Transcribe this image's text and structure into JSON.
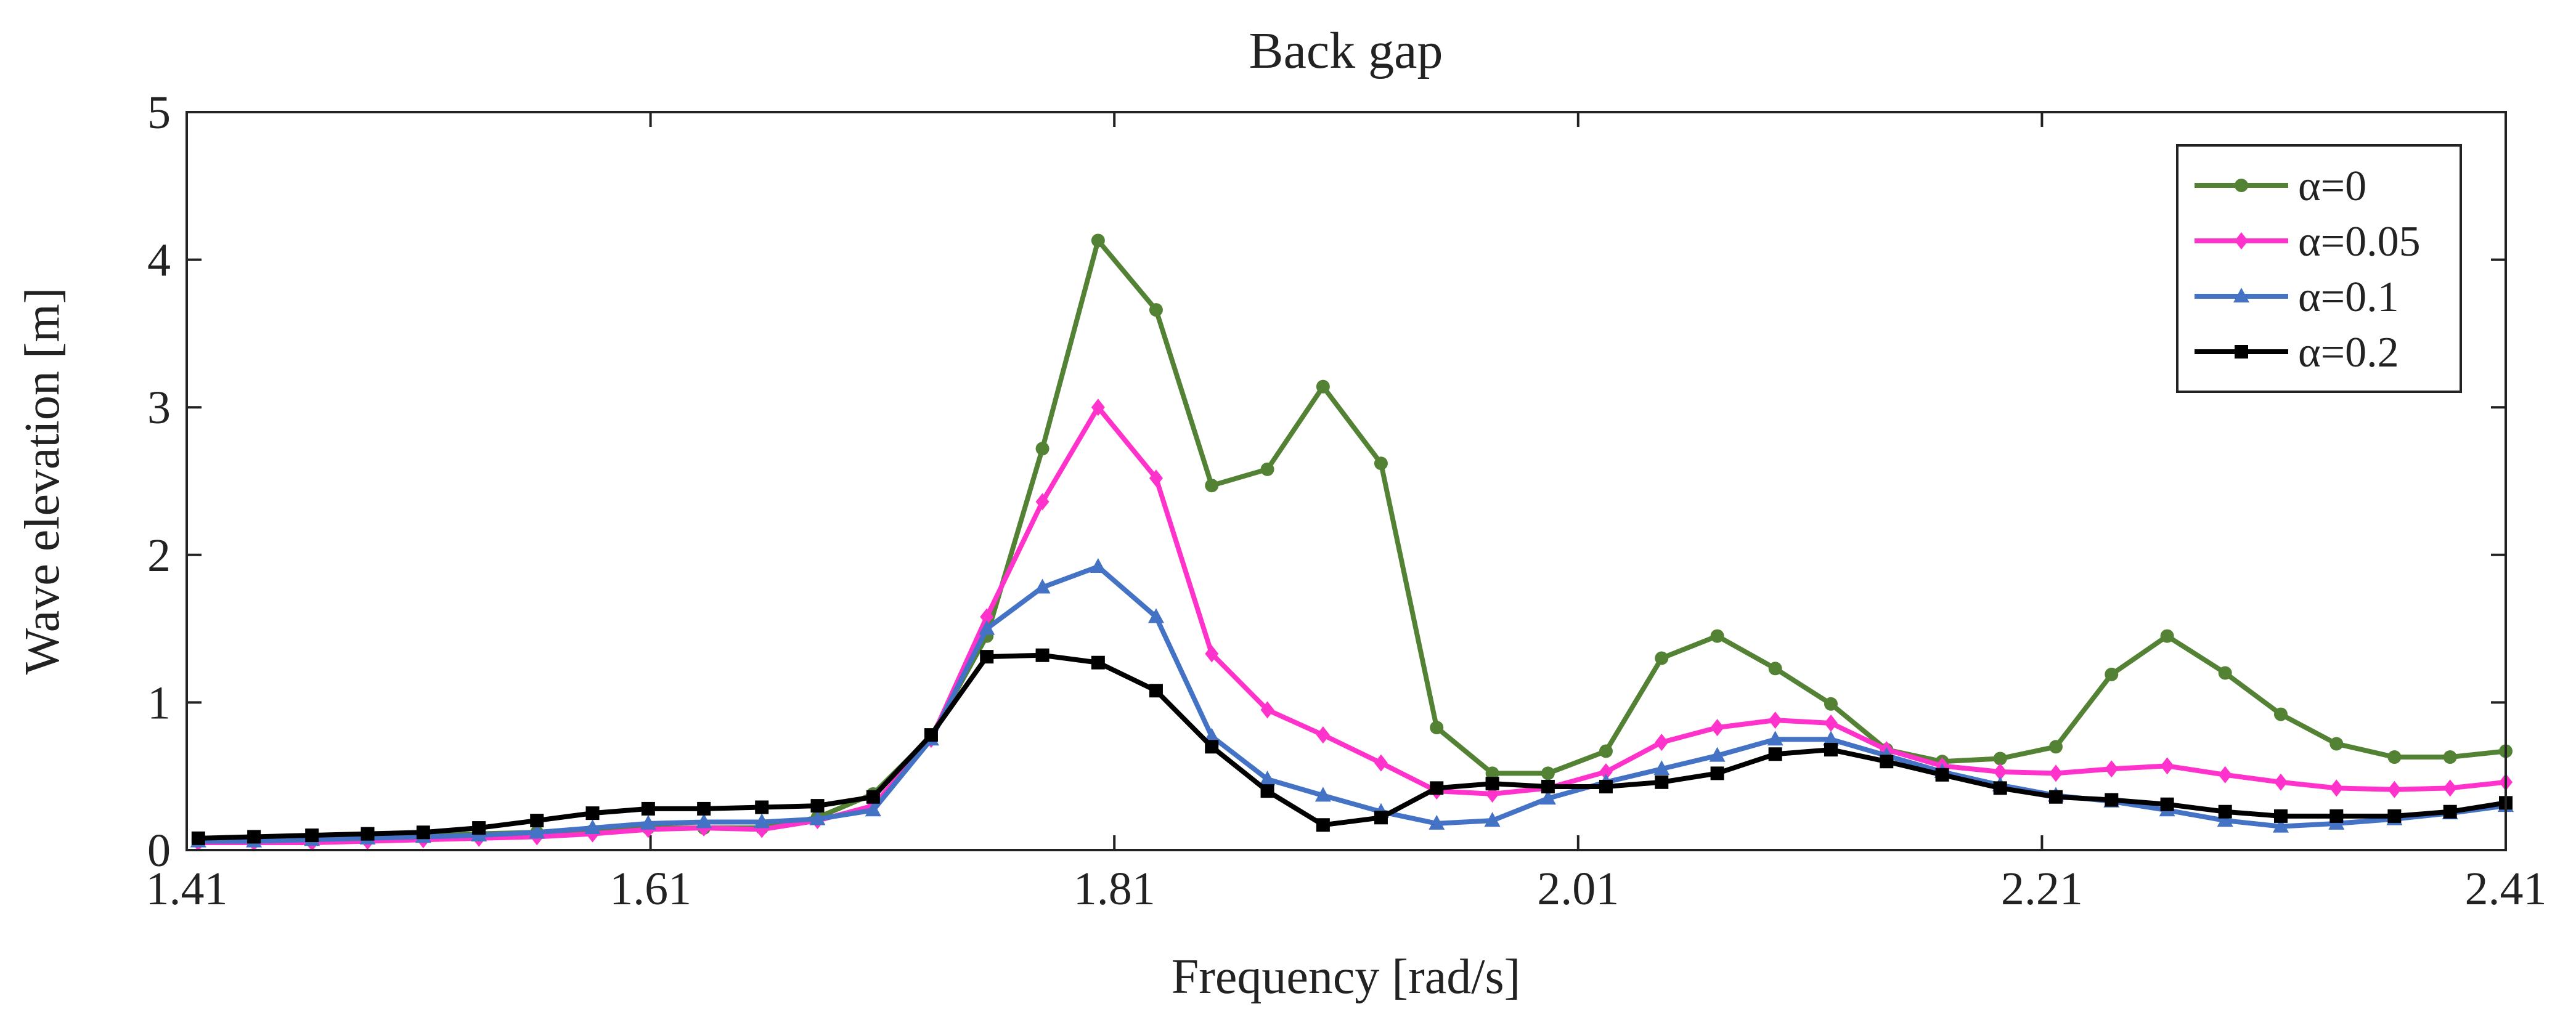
{
  "chart_data": {
    "type": "line",
    "title": "Back gap",
    "xlabel": "Frequency [rad/s]",
    "ylabel": "Wave elevation [m]",
    "xlim": [
      1.41,
      2.41
    ],
    "xticks": [
      1.41,
      1.61,
      1.81,
      2.01,
      2.21,
      2.41
    ],
    "ylim": [
      0,
      5
    ],
    "yticks": [
      0,
      1,
      2,
      3,
      4,
      5
    ],
    "legend": "upper right",
    "grid": false,
    "x": [
      1.415,
      1.439,
      1.464,
      1.488,
      1.512,
      1.536,
      1.561,
      1.585,
      1.609,
      1.633,
      1.658,
      1.682,
      1.706,
      1.731,
      1.755,
      1.779,
      1.803,
      1.828,
      1.852,
      1.876,
      1.9,
      1.925,
      1.949,
      1.973,
      1.997,
      2.022,
      2.046,
      2.07,
      2.095,
      2.119,
      2.143,
      2.167,
      2.192,
      2.216,
      2.24,
      2.264,
      2.289,
      2.313,
      2.337,
      2.362,
      2.386,
      2.41
    ],
    "series": [
      {
        "name": "α=0",
        "color": "#548235",
        "marker": "circle",
        "values": [
          0.07,
          0.07,
          0.08,
          0.09,
          0.1,
          0.11,
          0.12,
          0.13,
          0.15,
          0.15,
          0.15,
          0.22,
          0.38,
          0.77,
          1.45,
          2.72,
          4.13,
          3.66,
          2.47,
          2.58,
          3.14,
          2.62,
          0.83,
          0.52,
          0.52,
          0.67,
          1.3,
          1.45,
          1.23,
          0.99,
          0.68,
          0.6,
          0.62,
          0.7,
          1.19,
          1.45,
          1.2,
          0.92,
          0.72,
          0.63,
          0.63,
          0.67
        ]
      },
      {
        "name": "α=0.05",
        "color": "#ff33cc",
        "marker": "diamond",
        "values": [
          0.05,
          0.05,
          0.05,
          0.06,
          0.07,
          0.08,
          0.09,
          0.11,
          0.14,
          0.15,
          0.14,
          0.2,
          0.3,
          0.75,
          1.58,
          2.36,
          3.0,
          2.52,
          1.33,
          0.95,
          0.78,
          0.59,
          0.4,
          0.38,
          0.42,
          0.53,
          0.73,
          0.83,
          0.88,
          0.86,
          0.68,
          0.57,
          0.53,
          0.52,
          0.55,
          0.57,
          0.51,
          0.46,
          0.42,
          0.41,
          0.42,
          0.46
        ]
      },
      {
        "name": "α=0.1",
        "color": "#4472c4",
        "marker": "triangle",
        "values": [
          0.06,
          0.06,
          0.07,
          0.08,
          0.09,
          0.1,
          0.12,
          0.15,
          0.18,
          0.19,
          0.19,
          0.21,
          0.27,
          0.75,
          1.5,
          1.78,
          1.92,
          1.58,
          0.77,
          0.48,
          0.37,
          0.26,
          0.18,
          0.2,
          0.35,
          0.46,
          0.55,
          0.64,
          0.75,
          0.75,
          0.64,
          0.53,
          0.44,
          0.37,
          0.33,
          0.27,
          0.2,
          0.16,
          0.18,
          0.21,
          0.25,
          0.3
        ]
      },
      {
        "name": "α=0.2",
        "color": "#000000",
        "marker": "square",
        "values": [
          0.08,
          0.09,
          0.1,
          0.11,
          0.12,
          0.15,
          0.2,
          0.25,
          0.28,
          0.28,
          0.29,
          0.3,
          0.36,
          0.78,
          1.31,
          1.32,
          1.27,
          1.08,
          0.7,
          0.4,
          0.17,
          0.22,
          0.42,
          0.45,
          0.43,
          0.43,
          0.46,
          0.52,
          0.65,
          0.68,
          0.6,
          0.51,
          0.42,
          0.36,
          0.34,
          0.31,
          0.26,
          0.23,
          0.23,
          0.23,
          0.26,
          0.32
        ]
      }
    ]
  }
}
